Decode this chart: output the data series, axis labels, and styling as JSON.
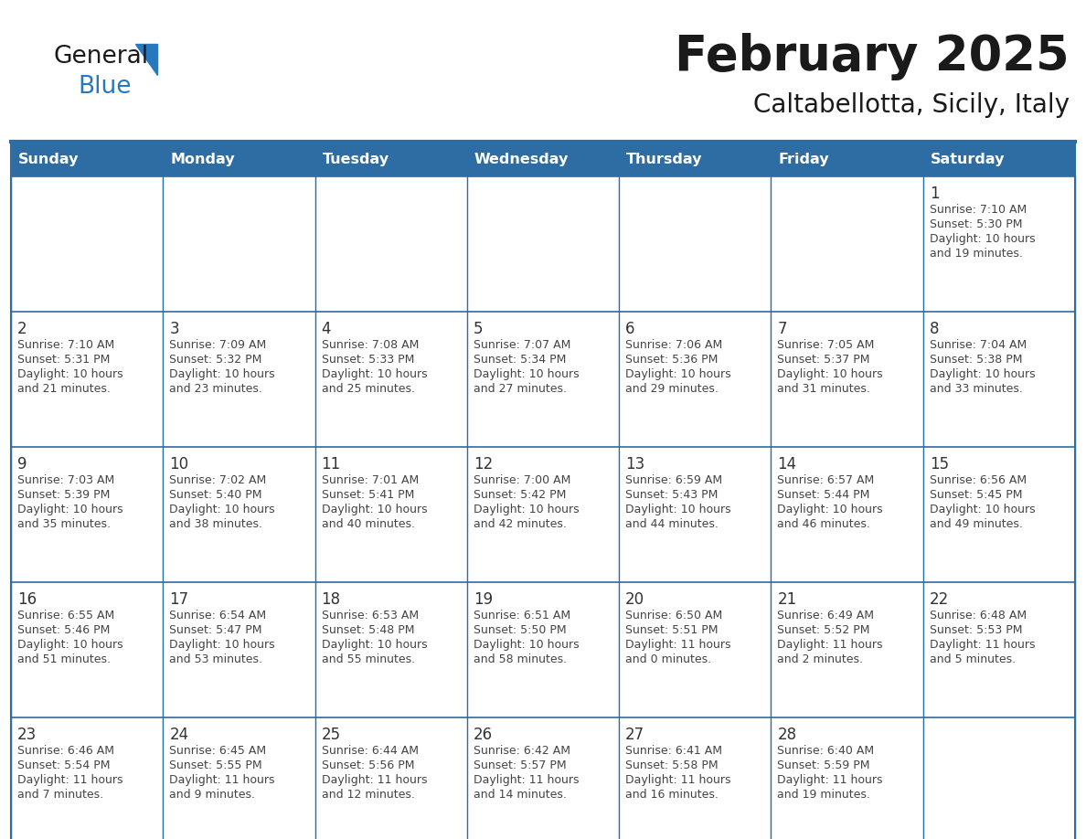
{
  "title": "February 2025",
  "subtitle": "Caltabellotta, Sicily, Italy",
  "header_bg": "#2E6DA4",
  "header_text_color": "#FFFFFF",
  "cell_bg": "#F5F5F5",
  "border_color": "#2E6DA4",
  "day_names": [
    "Sunday",
    "Monday",
    "Tuesday",
    "Wednesday",
    "Thursday",
    "Friday",
    "Saturday"
  ],
  "title_color": "#1a1a1a",
  "subtitle_color": "#1a1a1a",
  "day_number_color": "#333333",
  "cell_text_color": "#444444",
  "logo_general_color": "#1a1a1a",
  "logo_blue_color": "#2878BE",
  "calendar_data": [
    [
      null,
      null,
      null,
      null,
      null,
      null,
      {
        "day": "1",
        "sunrise": "7:10 AM",
        "sunset": "5:30 PM",
        "daylight": "10 hours\nand 19 minutes."
      }
    ],
    [
      {
        "day": "2",
        "sunrise": "7:10 AM",
        "sunset": "5:31 PM",
        "daylight": "10 hours\nand 21 minutes."
      },
      {
        "day": "3",
        "sunrise": "7:09 AM",
        "sunset": "5:32 PM",
        "daylight": "10 hours\nand 23 minutes."
      },
      {
        "day": "4",
        "sunrise": "7:08 AM",
        "sunset": "5:33 PM",
        "daylight": "10 hours\nand 25 minutes."
      },
      {
        "day": "5",
        "sunrise": "7:07 AM",
        "sunset": "5:34 PM",
        "daylight": "10 hours\nand 27 minutes."
      },
      {
        "day": "6",
        "sunrise": "7:06 AM",
        "sunset": "5:36 PM",
        "daylight": "10 hours\nand 29 minutes."
      },
      {
        "day": "7",
        "sunrise": "7:05 AM",
        "sunset": "5:37 PM",
        "daylight": "10 hours\nand 31 minutes."
      },
      {
        "day": "8",
        "sunrise": "7:04 AM",
        "sunset": "5:38 PM",
        "daylight": "10 hours\nand 33 minutes."
      }
    ],
    [
      {
        "day": "9",
        "sunrise": "7:03 AM",
        "sunset": "5:39 PM",
        "daylight": "10 hours\nand 35 minutes."
      },
      {
        "day": "10",
        "sunrise": "7:02 AM",
        "sunset": "5:40 PM",
        "daylight": "10 hours\nand 38 minutes."
      },
      {
        "day": "11",
        "sunrise": "7:01 AM",
        "sunset": "5:41 PM",
        "daylight": "10 hours\nand 40 minutes."
      },
      {
        "day": "12",
        "sunrise": "7:00 AM",
        "sunset": "5:42 PM",
        "daylight": "10 hours\nand 42 minutes."
      },
      {
        "day": "13",
        "sunrise": "6:59 AM",
        "sunset": "5:43 PM",
        "daylight": "10 hours\nand 44 minutes."
      },
      {
        "day": "14",
        "sunrise": "6:57 AM",
        "sunset": "5:44 PM",
        "daylight": "10 hours\nand 46 minutes."
      },
      {
        "day": "15",
        "sunrise": "6:56 AM",
        "sunset": "5:45 PM",
        "daylight": "10 hours\nand 49 minutes."
      }
    ],
    [
      {
        "day": "16",
        "sunrise": "6:55 AM",
        "sunset": "5:46 PM",
        "daylight": "10 hours\nand 51 minutes."
      },
      {
        "day": "17",
        "sunrise": "6:54 AM",
        "sunset": "5:47 PM",
        "daylight": "10 hours\nand 53 minutes."
      },
      {
        "day": "18",
        "sunrise": "6:53 AM",
        "sunset": "5:48 PM",
        "daylight": "10 hours\nand 55 minutes."
      },
      {
        "day": "19",
        "sunrise": "6:51 AM",
        "sunset": "5:50 PM",
        "daylight": "10 hours\nand 58 minutes."
      },
      {
        "day": "20",
        "sunrise": "6:50 AM",
        "sunset": "5:51 PM",
        "daylight": "11 hours\nand 0 minutes."
      },
      {
        "day": "21",
        "sunrise": "6:49 AM",
        "sunset": "5:52 PM",
        "daylight": "11 hours\nand 2 minutes."
      },
      {
        "day": "22",
        "sunrise": "6:48 AM",
        "sunset": "5:53 PM",
        "daylight": "11 hours\nand 5 minutes."
      }
    ],
    [
      {
        "day": "23",
        "sunrise": "6:46 AM",
        "sunset": "5:54 PM",
        "daylight": "11 hours\nand 7 minutes."
      },
      {
        "day": "24",
        "sunrise": "6:45 AM",
        "sunset": "5:55 PM",
        "daylight": "11 hours\nand 9 minutes."
      },
      {
        "day": "25",
        "sunrise": "6:44 AM",
        "sunset": "5:56 PM",
        "daylight": "11 hours\nand 12 minutes."
      },
      {
        "day": "26",
        "sunrise": "6:42 AM",
        "sunset": "5:57 PM",
        "daylight": "11 hours\nand 14 minutes."
      },
      {
        "day": "27",
        "sunrise": "6:41 AM",
        "sunset": "5:58 PM",
        "daylight": "11 hours\nand 16 minutes."
      },
      {
        "day": "28",
        "sunrise": "6:40 AM",
        "sunset": "5:59 PM",
        "daylight": "11 hours\nand 19 minutes."
      },
      null
    ]
  ]
}
